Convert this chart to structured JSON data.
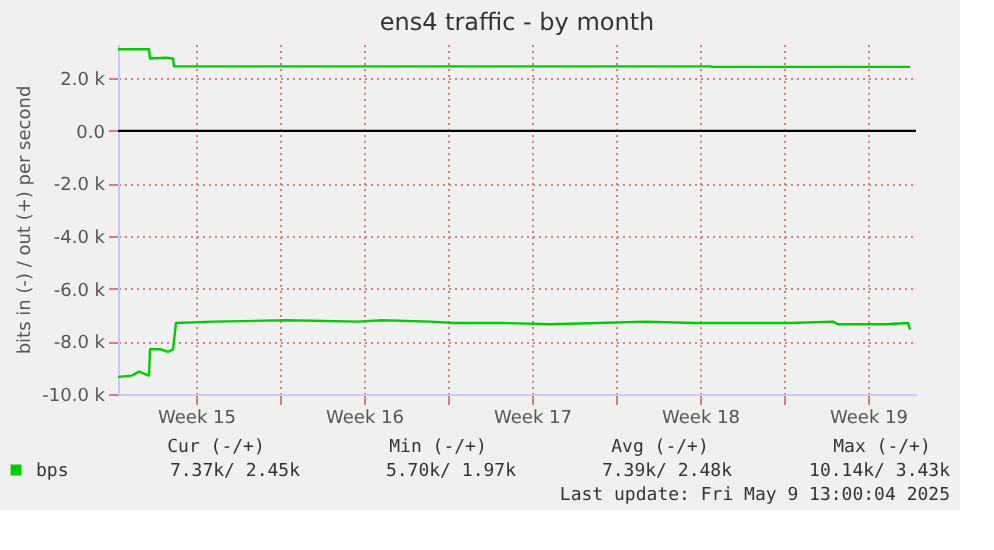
{
  "chart_data": {
    "type": "line",
    "title": "ens4 traffic - by month",
    "ylabel": "bits in (-) / out (+) per second",
    "x": [
      "2025-04-06T06:00",
      "2025-04-07T13:00",
      "2025-04-07T14:00",
      "2025-04-08T06:00",
      "2025-04-08T13:00",
      "2025-04-08T14:00",
      "2025-04-16T06:00",
      "2025-04-26T06:00",
      "2025-04-30T23:00",
      "2025-05-01T00:00",
      "2025-05-09T06:00"
    ],
    "xlim": [
      "2025-04-06T06:00",
      "2025-05-09T12:00"
    ],
    "xticks": [
      {
        "value": "2025-04-09T12:00",
        "label": "Week 15"
      },
      {
        "value": "2025-04-13T00:00",
        "label": null
      },
      {
        "value": "2025-04-16T12:00",
        "label": "Week 16"
      },
      {
        "value": "2025-04-20T00:00",
        "label": null
      },
      {
        "value": "2025-04-23T12:00",
        "label": "Week 17"
      },
      {
        "value": "2025-04-27T00:00",
        "label": null
      },
      {
        "value": "2025-04-30T12:00",
        "label": "Week 18"
      },
      {
        "value": "2025-05-04T00:00",
        "label": null
      },
      {
        "value": "2025-05-07T12:00",
        "label": "Week 19"
      }
    ],
    "ylim": [
      -10000,
      3300
    ],
    "yticks": [
      {
        "value": -10000,
        "label": "-10.0 k"
      },
      {
        "value": -8000,
        "label": "-8.0 k"
      },
      {
        "value": -6000,
        "label": "-6.0 k"
      },
      {
        "value": -4000,
        "label": "-4.0 k"
      },
      {
        "value": -2000,
        "label": "-2.0 k"
      },
      {
        "value": 0,
        "label": "0.0"
      },
      {
        "value": 2000,
        "label": "2.0 k"
      }
    ],
    "series": [
      {
        "name": "bps",
        "color": "#00cc00",
        "values": [
          3100,
          3100,
          2750,
          2780,
          2750,
          2450,
          2450,
          2450,
          2450,
          2430,
          2430
        ]
      },
      {
        "color": "#00cc00",
        "x": [
          "2025-04-06T06:00",
          "2025-04-06T20:00",
          "2025-04-07T03:00",
          "2025-04-07T13:00",
          "2025-04-07T14:00",
          "2025-04-08T01:00",
          "2025-04-08T08:00",
          "2025-04-08T13:00",
          "2025-04-08T16:00",
          "2025-04-10T06:00",
          "2025-04-13T06:00",
          "2025-04-16T06:00",
          "2025-04-17T06:00",
          "2025-04-19T06:00",
          "2025-04-20T06:00",
          "2025-04-22T06:00",
          "2025-04-24T06:00",
          "2025-04-26T06:00",
          "2025-04-28T06:00",
          "2025-04-30T06:00",
          "2025-05-02T06:00",
          "2025-05-04T06:00",
          "2025-05-06T01:00",
          "2025-05-06T06:00",
          "2025-05-08T06:00",
          "2025-05-09T04:00",
          "2025-05-09T06:00"
        ],
        "values": [
          -9350,
          -9300,
          -9150,
          -9300,
          -8300,
          -8300,
          -8400,
          -8300,
          -7300,
          -7250,
          -7200,
          -7250,
          -7200,
          -7250,
          -7300,
          -7300,
          -7350,
          -7300,
          -7250,
          -7300,
          -7300,
          -7300,
          -7250,
          -7350,
          -7350,
          -7300,
          -7550
        ]
      }
    ],
    "ref_lines": [
      {
        "axis": "y",
        "value": 0,
        "color": "#000000"
      }
    ],
    "grid": true,
    "legend": "bottom",
    "annotations": [
      "Cur (-/+)",
      "Min (-/+)",
      "Avg (-/+)",
      "Max (-/+)",
      "7.37k/   2.45k",
      "5.70k/   1.97k",
      "7.39k/   2.48k",
      "10.14k/   3.43k",
      "Last update: Fri May  9 13:00:04 2025"
    ]
  }
}
